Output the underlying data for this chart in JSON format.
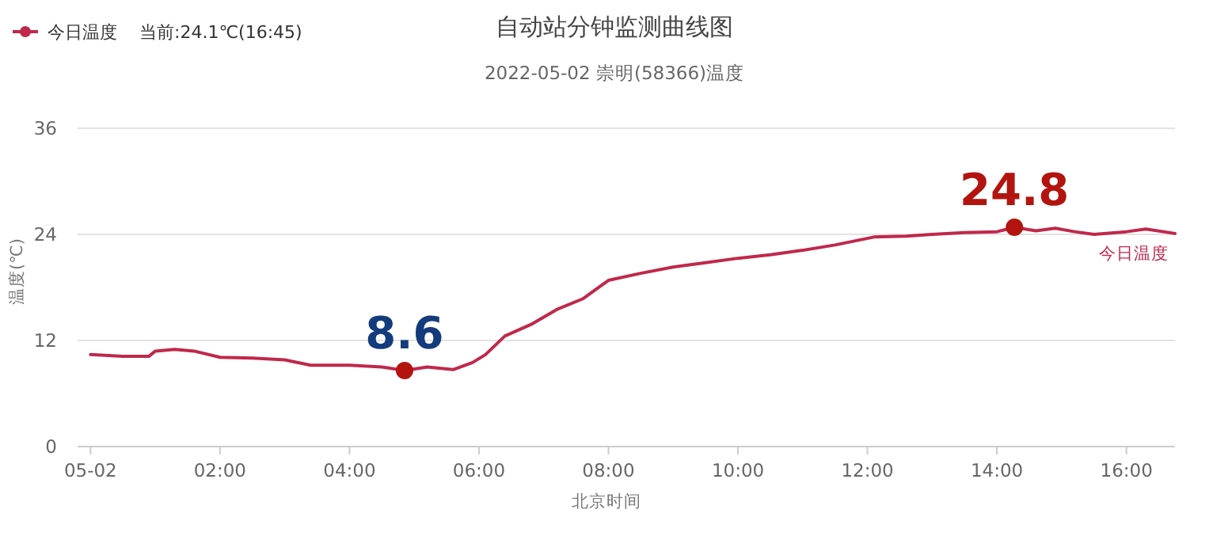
{
  "chart_data": {
    "type": "line",
    "title": "自动站分钟监测曲线图",
    "subtitle": "2022-05-02 崇明(58366)温度",
    "xlabel": "北京时间",
    "ylabel": "温度(℃)",
    "x": [
      0,
      0.5,
      0.9,
      1.0,
      1.3,
      1.6,
      2.0,
      2.5,
      3.0,
      3.4,
      4.0,
      4.5,
      4.85,
      5.2,
      5.6,
      5.9,
      6.1,
      6.4,
      6.8,
      7.2,
      7.6,
      8.0,
      8.5,
      9.0,
      9.5,
      10.0,
      10.5,
      11.0,
      11.5,
      12.1,
      12.6,
      13.0,
      13.5,
      14.0,
      14.27,
      14.6,
      14.9,
      15.2,
      15.5,
      16.0,
      16.3,
      16.75
    ],
    "series": [
      {
        "name": "今日温度",
        "color": "#c0284b",
        "values": [
          10.4,
          10.2,
          10.2,
          10.8,
          11.0,
          10.8,
          10.1,
          10.0,
          9.8,
          9.2,
          9.2,
          9.0,
          8.6,
          9.0,
          8.7,
          9.5,
          10.4,
          12.5,
          13.8,
          15.5,
          16.7,
          18.8,
          19.6,
          20.3,
          20.8,
          21.3,
          21.7,
          22.2,
          22.8,
          23.7,
          23.8,
          24.0,
          24.2,
          24.3,
          24.8,
          24.4,
          24.7,
          24.3,
          24.0,
          24.3,
          24.6,
          24.1
        ]
      }
    ],
    "xlim": [
      -0.2,
      16.75
    ],
    "xticks": [
      {
        "value": 0,
        "label": "05-02"
      },
      {
        "value": 2,
        "label": "02:00"
      },
      {
        "value": 4,
        "label": "04:00"
      },
      {
        "value": 6,
        "label": "06:00"
      },
      {
        "value": 8,
        "label": "08:00"
      },
      {
        "value": 10,
        "label": "10:00"
      },
      {
        "value": 12,
        "label": "12:00"
      },
      {
        "value": 14,
        "label": "14:00"
      },
      {
        "value": 16,
        "label": "16:00"
      }
    ],
    "ylim": [
      0,
      36
    ],
    "yticks": [
      0,
      12,
      24,
      36
    ],
    "grid": "y",
    "legend": "top left",
    "marker": "none",
    "line_style": "solid",
    "annotations": [
      "当前:24.1℃(16:45)",
      {
        "text": "8.6",
        "x": 4.85,
        "y": 8.6
      },
      {
        "text": "24.8",
        "x": 14.27,
        "y": 24.8
      }
    ]
  }
}
